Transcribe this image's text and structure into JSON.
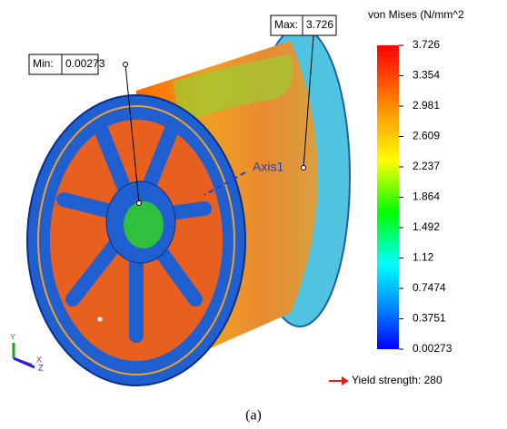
{
  "legend": {
    "title": "von Mises (N/mm^2",
    "labels": [
      "3.726",
      "3.354",
      "2.981",
      "2.609",
      "2.237",
      "1.864",
      "1.492",
      "1.12",
      "0.7474",
      "0.3751",
      "0.00273"
    ]
  },
  "max_probe": {
    "label": "Max:",
    "value": "3.726"
  },
  "min_probe": {
    "label": "Min:",
    "value": "0.00273"
  },
  "axis_label": "Axis1",
  "yield": "Yield strength: 280",
  "triad": {
    "y": "Y",
    "x": "X",
    "z": "Z"
  },
  "caption": "(a)"
}
